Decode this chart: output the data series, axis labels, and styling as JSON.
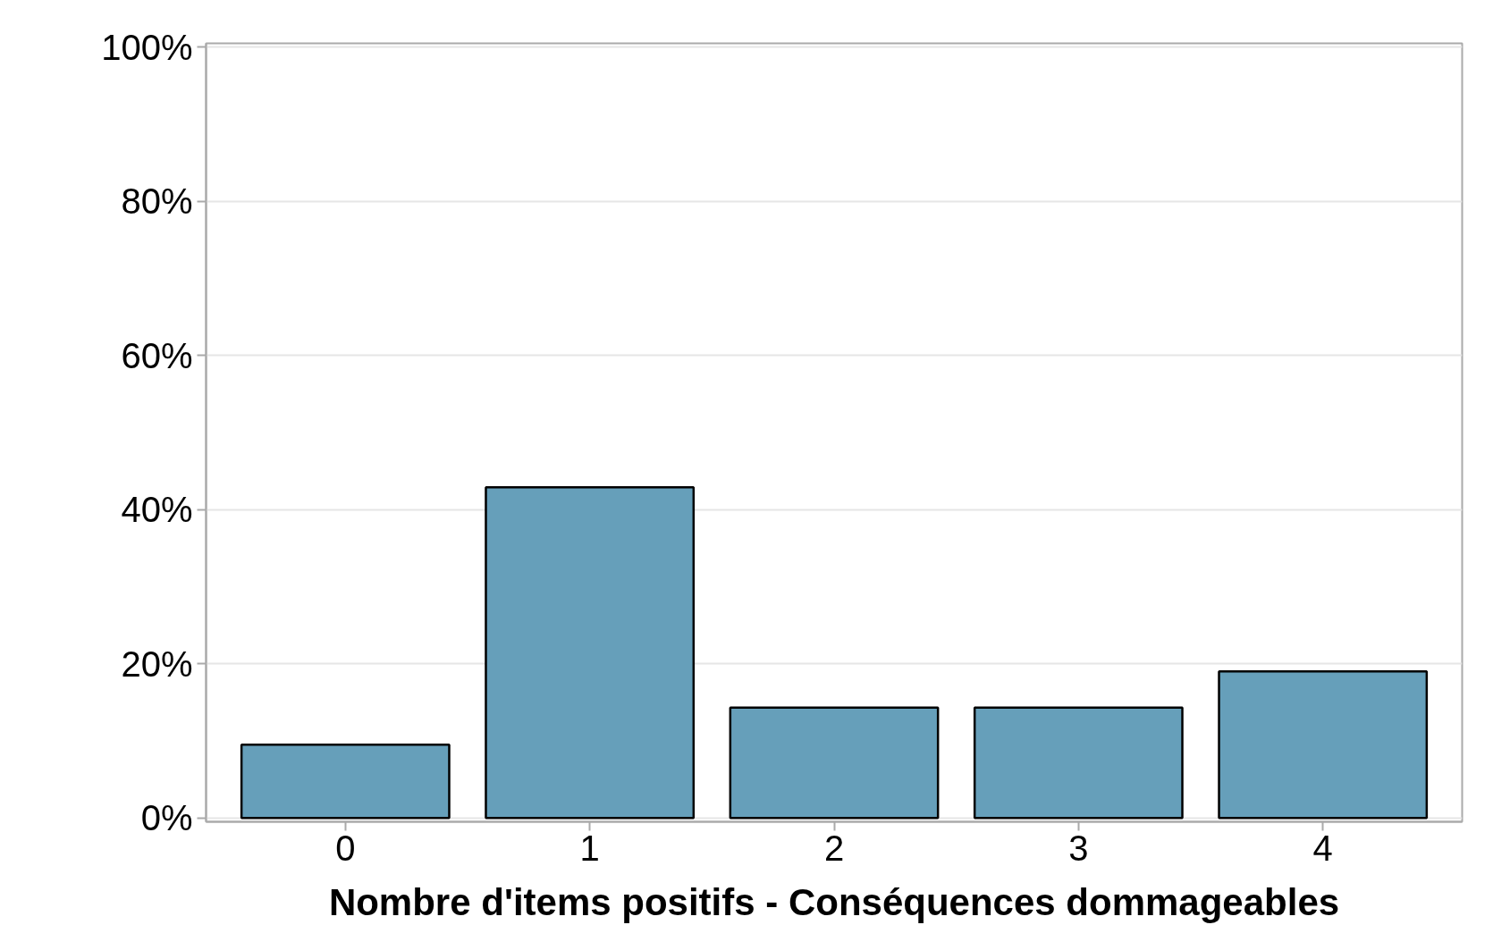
{
  "chart_data": {
    "type": "bar",
    "xlabel": "Nombre d'items positifs - Conséquences dommageables",
    "categories": [
      "0",
      "1",
      "2",
      "3",
      "4"
    ],
    "values": [
      9.5,
      42.9,
      14.3,
      14.3,
      19.0
    ],
    "color": "#669fba",
    "ylim": [
      -0.5,
      100.5
    ],
    "yticks": [
      {
        "value": 0,
        "label": "0%"
      },
      {
        "value": 20,
        "label": "20%"
      },
      {
        "value": 40,
        "label": "40%"
      },
      {
        "value": 60,
        "label": "60%"
      },
      {
        "value": 80,
        "label": "80%"
      },
      {
        "value": 100,
        "label": "100%"
      }
    ],
    "grid": "y"
  }
}
